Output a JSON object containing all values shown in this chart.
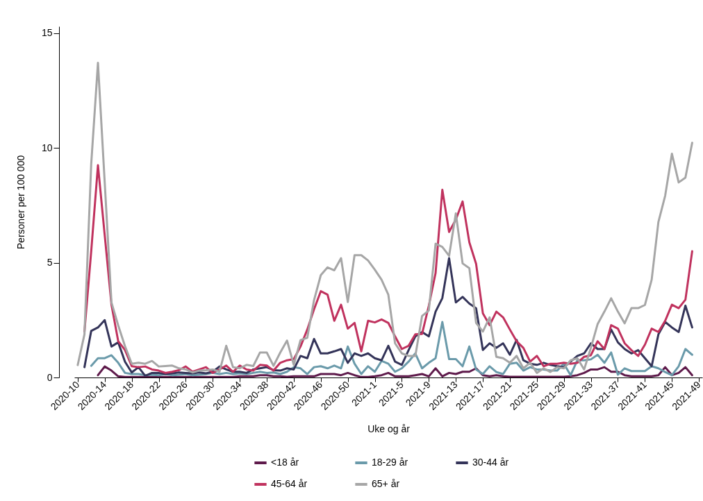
{
  "chart_data": {
    "type": "line",
    "xlabel": "Uke og år",
    "ylabel": "Personer per 100 000",
    "categories": [
      "2020-10",
      null,
      null,
      null,
      "2020-14",
      null,
      null,
      null,
      "2020-18",
      null,
      null,
      null,
      "2020-22",
      null,
      null,
      null,
      "2020-26",
      null,
      null,
      null,
      "2020-30",
      null,
      null,
      null,
      "2020-34",
      null,
      null,
      null,
      "2020-38",
      null,
      null,
      null,
      "2020-42",
      null,
      null,
      null,
      "2020-46",
      null,
      null,
      null,
      "2020-50",
      null,
      null,
      null,
      "2021-1",
      null,
      null,
      null,
      "2021-5",
      null,
      null,
      null,
      "2021-9",
      null,
      null,
      null,
      "2021-13",
      null,
      null,
      null,
      "2021-17",
      null,
      null,
      null,
      "2021-21",
      null,
      null,
      null,
      "2021-25",
      null,
      null,
      null,
      "2021-29",
      null,
      null,
      null,
      "2021-33",
      null,
      null,
      null,
      "2021-37",
      null,
      null,
      null,
      "2021-41",
      null,
      null,
      null,
      "2021-45",
      null,
      null,
      null,
      "2021-49"
    ],
    "series": [
      {
        "name": "<18 år",
        "color": "#5e1a4b",
        "values": [
          null,
          null,
          null,
          0.1,
          0.48,
          0.3,
          0.05,
          0.02,
          0.02,
          0.02,
          0.02,
          0.02,
          0.02,
          0.02,
          0.02,
          0.02,
          0.02,
          0.02,
          0.02,
          0.02,
          0.02,
          0.02,
          0.02,
          0.02,
          0.05,
          0.05,
          0.05,
          0.1,
          0.1,
          0.05,
          0.05,
          0.03,
          0.05,
          0.05,
          0.05,
          0.05,
          0.15,
          0.15,
          0.15,
          0.1,
          0.2,
          0.1,
          0.02,
          0.02,
          0.05,
          0.1,
          0.2,
          0.05,
          0.05,
          0.05,
          0.1,
          0.15,
          0.05,
          0.4,
          0.05,
          0.2,
          0.15,
          0.25,
          0.25,
          0.4,
          0.1,
          0.05,
          0.1,
          0.05,
          0.03,
          0.03,
          0.03,
          0.03,
          0.03,
          0.03,
          0.03,
          0.03,
          0.03,
          0.05,
          0.1,
          0.2,
          0.35,
          0.35,
          0.45,
          0.25,
          0.25,
          0.1,
          0.05,
          0.05,
          0.05,
          0.05,
          0.1,
          0.45,
          0.1,
          0.2,
          0.45,
          0.1,
          null
        ]
      },
      {
        "name": "18-29 år",
        "color": "#6a9aaa",
        "values": [
          null,
          null,
          0.51,
          0.84,
          0.84,
          0.97,
          0.64,
          0.2,
          0.15,
          0.15,
          0.1,
          0.12,
          0.1,
          0.15,
          0.1,
          0.12,
          0.15,
          0.1,
          0.12,
          0.15,
          0.2,
          0.15,
          0.2,
          0.15,
          0.18,
          0.15,
          0.2,
          0.25,
          0.2,
          0.22,
          0.15,
          0.25,
          0.45,
          0.4,
          0.15,
          0.45,
          0.49,
          0.4,
          0.52,
          0.4,
          1.35,
          0.6,
          0.15,
          0.49,
          0.25,
          0.72,
          0.6,
          0.25,
          0.4,
          0.69,
          1.05,
          0.4,
          0.64,
          0.84,
          2.42,
          0.8,
          0.8,
          0.49,
          1.35,
          0.35,
          0.15,
          0.49,
          0.24,
          0.15,
          0.6,
          0.64,
          0.3,
          0.45,
          0.35,
          0.35,
          0.3,
          0.3,
          0.6,
          0.1,
          0.75,
          0.75,
          0.79,
          0.99,
          0.64,
          1.09,
          0.12,
          0.4,
          0.28,
          0.28,
          0.28,
          0.49,
          0.4,
          0.24,
          0.1,
          0.49,
          1.24,
          0.99,
          null
        ]
      },
      {
        "name": "30-44 år",
        "color": "#343459",
        "values": [
          null,
          0.45,
          2.03,
          2.18,
          2.5,
          1.35,
          1.53,
          0.69,
          0.22,
          0.45,
          0.07,
          0.2,
          0.2,
          0.15,
          0.18,
          0.22,
          0.2,
          0.18,
          0.22,
          0.18,
          0.25,
          0.48,
          0.35,
          0.25,
          0.25,
          0.2,
          0.35,
          0.4,
          0.45,
          0.32,
          0.3,
          0.4,
          0.35,
          0.94,
          0.84,
          1.68,
          1.05,
          1.05,
          1.14,
          1.24,
          0.64,
          1.05,
          0.94,
          1.05,
          0.84,
          0.75,
          1.38,
          0.69,
          0.55,
          1.19,
          1.79,
          1.98,
          1.79,
          2.87,
          3.46,
          5.2,
          3.27,
          3.51,
          3.22,
          3.02,
          1.2,
          1.49,
          1.29,
          1.49,
          0.99,
          1.64,
          0.75,
          0.6,
          0.55,
          0.64,
          0.55,
          0.49,
          0.45,
          0.69,
          0.94,
          1.05,
          1.49,
          1.24,
          1.24,
          2.09,
          1.53,
          1.24,
          1.05,
          1.19,
          0.84,
          0.49,
          1.88,
          2.42,
          2.18,
          1.98,
          3.13,
          2.18,
          null
        ]
      },
      {
        "name": "45-64 år",
        "color": "#c0325e",
        "values": [
          null,
          2.0,
          5.5,
          9.25,
          6.2,
          3.17,
          1.58,
          1.2,
          0.49,
          0.45,
          0.48,
          0.35,
          0.3,
          0.2,
          0.25,
          0.32,
          0.48,
          0.25,
          0.35,
          0.45,
          0.2,
          0.35,
          0.52,
          0.25,
          0.52,
          0.35,
          0.3,
          0.55,
          0.52,
          0.3,
          0.64,
          0.75,
          0.8,
          1.35,
          2.09,
          2.97,
          3.76,
          3.61,
          2.47,
          3.17,
          2.13,
          2.38,
          1.14,
          2.47,
          2.4,
          2.53,
          2.38,
          1.79,
          1.24,
          1.38,
          1.88,
          1.9,
          3.13,
          4.55,
          8.18,
          6.34,
          6.88,
          7.67,
          5.89,
          4.95,
          2.8,
          2.28,
          2.87,
          2.62,
          2.09,
          1.58,
          1.29,
          0.69,
          0.94,
          0.49,
          0.6,
          0.6,
          0.64,
          0.6,
          0.64,
          0.9,
          0.97,
          1.58,
          1.24,
          2.28,
          2.13,
          1.49,
          1.19,
          0.94,
          1.43,
          2.13,
          1.98,
          2.47,
          3.17,
          3.02,
          3.39,
          5.5,
          null
        ]
      },
      {
        "name": "65+ år",
        "color": "#a6a6a6",
        "values": [
          0.54,
          1.88,
          9.3,
          13.71,
          8.5,
          3.27,
          2.27,
          1.37,
          0.6,
          0.64,
          0.6,
          0.72,
          0.48,
          0.5,
          0.52,
          0.4,
          0.35,
          0.22,
          0.3,
          0.32,
          0.35,
          0.25,
          1.38,
          0.45,
          0.4,
          0.55,
          0.5,
          1.09,
          1.09,
          0.51,
          1.09,
          1.61,
          0.55,
          1.63,
          1.73,
          3.37,
          4.46,
          4.8,
          4.67,
          5.2,
          3.29,
          5.33,
          5.33,
          5.1,
          4.7,
          4.26,
          3.61,
          1.49,
          1.05,
          0.94,
          0.94,
          2.68,
          2.92,
          5.83,
          5.69,
          5.3,
          7.15,
          4.97,
          4.76,
          2.38,
          2.0,
          2.62,
          0.9,
          0.84,
          0.64,
          0.94,
          0.4,
          0.64,
          0.2,
          0.4,
          0.24,
          0.45,
          0.4,
          0.75,
          0.84,
          0.35,
          1.29,
          2.33,
          2.87,
          3.45,
          2.87,
          2.36,
          3.02,
          3.02,
          3.16,
          4.26,
          6.78,
          7.92,
          9.75,
          8.5,
          8.71,
          10.23,
          null
        ]
      }
    ],
    "ylim": [
      0,
      15.3
    ],
    "yticks": [
      0,
      5,
      10,
      15
    ],
    "legend": "bottom"
  }
}
